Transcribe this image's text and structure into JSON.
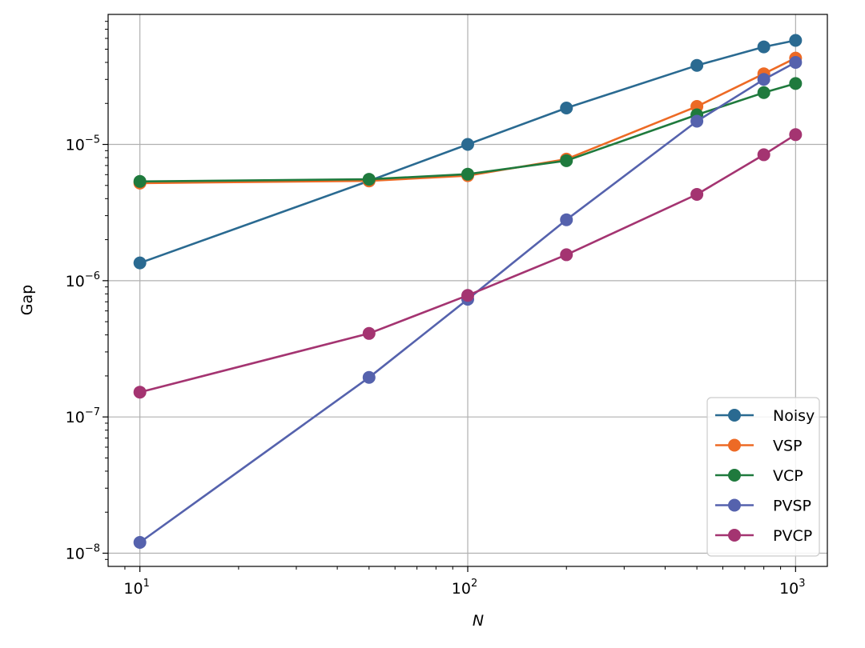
{
  "chart_data": {
    "type": "line",
    "xlabel": "N",
    "ylabel": "Gap",
    "x_scale": "log",
    "y_scale": "log",
    "xlim": [
      8,
      1250
    ],
    "ylim": [
      8e-09,
      9e-05
    ],
    "x_ticks": [
      {
        "value": 10,
        "base": "10",
        "exp": "1"
      },
      {
        "value": 100,
        "base": "10",
        "exp": "2"
      },
      {
        "value": 1000,
        "base": "10",
        "exp": "3"
      }
    ],
    "y_ticks": [
      {
        "value": 1e-08,
        "base": "10",
        "exp": "−8"
      },
      {
        "value": 1e-07,
        "base": "10",
        "exp": "−7"
      },
      {
        "value": 1e-06,
        "base": "10",
        "exp": "−6"
      },
      {
        "value": 1e-05,
        "base": "10",
        "exp": "−5"
      }
    ],
    "grid": true,
    "legend_position": "lower-right",
    "x": [
      10,
      50,
      100,
      200,
      500,
      800,
      1000
    ],
    "series": [
      {
        "name": "Noisy",
        "color": "#2a6a91",
        "values": [
          1.35e-06,
          5.4e-06,
          1e-05,
          1.85e-05,
          3.8e-05,
          5.2e-05,
          5.8e-05
        ]
      },
      {
        "name": "VSP",
        "color": "#ed6a25",
        "values": [
          5.2e-06,
          5.4e-06,
          5.9e-06,
          7.8e-06,
          1.9e-05,
          3.3e-05,
          4.3e-05
        ]
      },
      {
        "name": "VCP",
        "color": "#1f7a3d",
        "values": [
          5.35e-06,
          5.55e-06,
          6.05e-06,
          7.6e-06,
          1.65e-05,
          2.4e-05,
          2.8e-05
        ]
      },
      {
        "name": "PVSP",
        "color": "#5562ad",
        "values": [
          1.2e-08,
          1.95e-07,
          7.3e-07,
          2.8e-06,
          1.48e-05,
          3e-05,
          4e-05
        ]
      },
      {
        "name": "PVCP",
        "color": "#a43471",
        "values": [
          1.52e-07,
          4.1e-07,
          7.8e-07,
          1.55e-06,
          4.3e-06,
          8.4e-06,
          1.18e-05
        ]
      }
    ]
  }
}
